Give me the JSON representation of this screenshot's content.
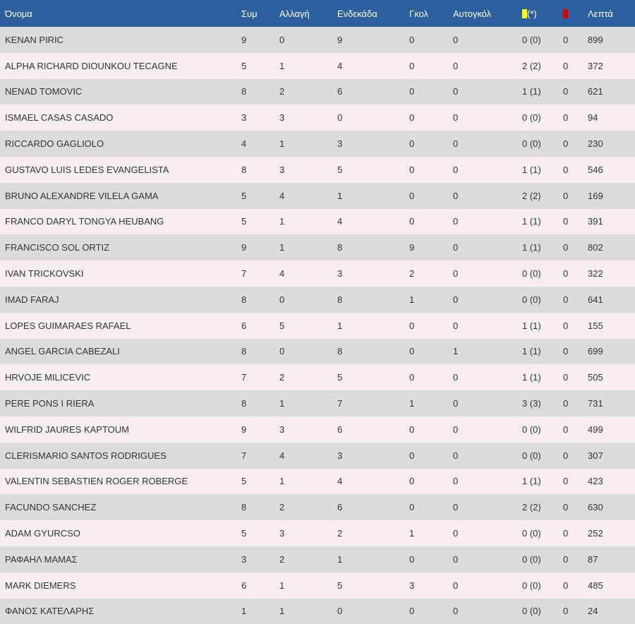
{
  "colors": {
    "header_bg": "#2c5f9e",
    "row_odd": "#dcdcdc",
    "row_even": "#f7efef",
    "yellow_card": "#ffff00",
    "red_card": "#e00000"
  },
  "header": {
    "name": "Όνομα",
    "apps": "Συμ",
    "subs": "Αλλαγή",
    "starts": "Ενδεκάδα",
    "goals": "Γκολ",
    "own_goals": "Αυτογκόλ",
    "yellow_icon": "yellow-card-icon",
    "yellow_suffix": "(*)",
    "red_icon": "red-card-icon",
    "minutes": "Λεπτά"
  },
  "rows": [
    {
      "name": "KENAN PIRIC",
      "apps": "9",
      "subs": "0",
      "starts": "9",
      "goals": "0",
      "own_goals": "0",
      "yellow": "0 (0)",
      "red": "0",
      "minutes": "899"
    },
    {
      "name": "ALPHA RICHARD DIOUNKOU TECAGNE",
      "apps": "5",
      "subs": "1",
      "starts": "4",
      "goals": "0",
      "own_goals": "0",
      "yellow": "2 (2)",
      "red": "0",
      "minutes": "372"
    },
    {
      "name": "NENAD TOMOVIC",
      "apps": "8",
      "subs": "2",
      "starts": "6",
      "goals": "0",
      "own_goals": "0",
      "yellow": "1 (1)",
      "red": "0",
      "minutes": "621"
    },
    {
      "name": "ISMAEL CASAS CASADO",
      "apps": "3",
      "subs": "3",
      "starts": "0",
      "goals": "0",
      "own_goals": "0",
      "yellow": "0 (0)",
      "red": "0",
      "minutes": "94"
    },
    {
      "name": "RICCARDO GAGLIOLO",
      "apps": "4",
      "subs": "1",
      "starts": "3",
      "goals": "0",
      "own_goals": "0",
      "yellow": "0 (0)",
      "red": "0",
      "minutes": "230"
    },
    {
      "name": "GUSTAVO LUIS LEDES EVANGELISTA",
      "apps": "8",
      "subs": "3",
      "starts": "5",
      "goals": "0",
      "own_goals": "0",
      "yellow": "1 (1)",
      "red": "0",
      "minutes": "546"
    },
    {
      "name": "BRUNO ALEXANDRE VILELA GAMA",
      "apps": "5",
      "subs": "4",
      "starts": "1",
      "goals": "0",
      "own_goals": "0",
      "yellow": "2 (2)",
      "red": "0",
      "minutes": "169"
    },
    {
      "name": "FRANCO DARYL TONGYA HEUBANG",
      "apps": "5",
      "subs": "1",
      "starts": "4",
      "goals": "0",
      "own_goals": "0",
      "yellow": "1 (1)",
      "red": "0",
      "minutes": "391"
    },
    {
      "name": "FRANCISCO SOL ORTIZ",
      "apps": "9",
      "subs": "1",
      "starts": "8",
      "goals": "9",
      "own_goals": "0",
      "yellow": "1 (1)",
      "red": "0",
      "minutes": "802"
    },
    {
      "name": "IVAN TRICKOVSKI",
      "apps": "7",
      "subs": "4",
      "starts": "3",
      "goals": "2",
      "own_goals": "0",
      "yellow": "0 (0)",
      "red": "0",
      "minutes": "322"
    },
    {
      "name": "IMAD FARAJ",
      "apps": "8",
      "subs": "0",
      "starts": "8",
      "goals": "1",
      "own_goals": "0",
      "yellow": "0 (0)",
      "red": "0",
      "minutes": "641"
    },
    {
      "name": "LOPES GUIMARAES RAFAEL",
      "apps": "6",
      "subs": "5",
      "starts": "1",
      "goals": "0",
      "own_goals": "0",
      "yellow": "1 (1)",
      "red": "0",
      "minutes": "155"
    },
    {
      "name": "ANGEL GARCIA CABEZALI",
      "apps": "8",
      "subs": "0",
      "starts": "8",
      "goals": "0",
      "own_goals": "1",
      "yellow": "1 (1)",
      "red": "0",
      "minutes": "699"
    },
    {
      "name": "HRVOJE MILICEVIC",
      "apps": "7",
      "subs": "2",
      "starts": "5",
      "goals": "0",
      "own_goals": "0",
      "yellow": "1 (1)",
      "red": "0",
      "minutes": "505"
    },
    {
      "name": "PERE PONS I RIERA",
      "apps": "8",
      "subs": "1",
      "starts": "7",
      "goals": "1",
      "own_goals": "0",
      "yellow": "3 (3)",
      "red": "0",
      "minutes": "731"
    },
    {
      "name": "WILFRID JAURES KAPTOUM",
      "apps": "9",
      "subs": "3",
      "starts": "6",
      "goals": "0",
      "own_goals": "0",
      "yellow": "0 (0)",
      "red": "0",
      "minutes": "499"
    },
    {
      "name": "CLERISMARIO SANTOS RODRIGUES",
      "apps": "7",
      "subs": "4",
      "starts": "3",
      "goals": "0",
      "own_goals": "0",
      "yellow": "0 (0)",
      "red": "0",
      "minutes": "307"
    },
    {
      "name": "VALENTIN SEBASTIEN ROGER ROBERGE",
      "apps": "5",
      "subs": "1",
      "starts": "4",
      "goals": "0",
      "own_goals": "0",
      "yellow": "1 (1)",
      "red": "0",
      "minutes": "423"
    },
    {
      "name": "FACUNDO SANCHEZ",
      "apps": "8",
      "subs": "2",
      "starts": "6",
      "goals": "0",
      "own_goals": "0",
      "yellow": "2 (2)",
      "red": "0",
      "minutes": "630"
    },
    {
      "name": "ADAM GYURCSO",
      "apps": "5",
      "subs": "3",
      "starts": "2",
      "goals": "1",
      "own_goals": "0",
      "yellow": "0 (0)",
      "red": "0",
      "minutes": "252"
    },
    {
      "name": "ΡΑΦΑΗΛ ΜΑΜΑΣ",
      "apps": "3",
      "subs": "2",
      "starts": "1",
      "goals": "0",
      "own_goals": "0",
      "yellow": "0 (0)",
      "red": "0",
      "minutes": "87"
    },
    {
      "name": "MARK DIEMERS",
      "apps": "6",
      "subs": "1",
      "starts": "5",
      "goals": "3",
      "own_goals": "0",
      "yellow": "0 (0)",
      "red": "0",
      "minutes": "485"
    },
    {
      "name": "ΦΑΝΟΣ ΚΑΤΕΛΑΡΗΣ",
      "apps": "1",
      "subs": "1",
      "starts": "0",
      "goals": "0",
      "own_goals": "0",
      "yellow": "0 (0)",
      "red": "0",
      "minutes": "24"
    }
  ]
}
